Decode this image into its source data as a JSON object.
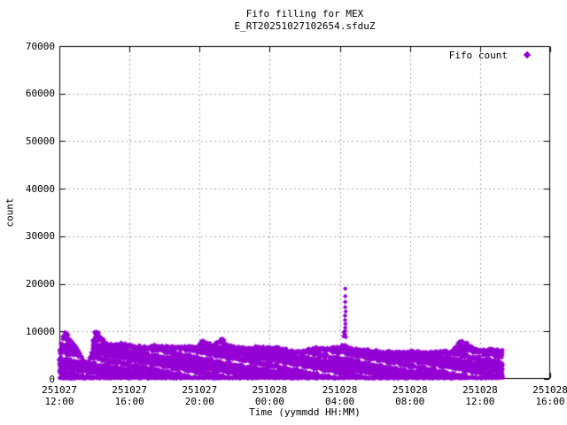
{
  "chart_data": {
    "type": "scatter",
    "title": "Fifo filling for MEX",
    "subtitle": "E_RT20251027102654.sfduZ",
    "xlabel": "Time (yymmdd HH:MM)",
    "ylabel": "count",
    "ylim": [
      0,
      70000
    ],
    "xlim_hours": [
      0,
      28
    ],
    "grid": true,
    "legend": {
      "label": "Fifo count",
      "position": "top-right",
      "marker": "filled-diamond"
    },
    "colors": {
      "marker": "#9400D3",
      "grid": "#a6a6a6",
      "text": "#000000",
      "border": "#000000",
      "background": "#ffffff"
    },
    "y_ticks": [
      0,
      10000,
      20000,
      30000,
      40000,
      50000,
      60000,
      70000
    ],
    "x_ticks": [
      {
        "date": "251027",
        "time": "12:00",
        "hours": 0
      },
      {
        "date": "251027",
        "time": "16:00",
        "hours": 4
      },
      {
        "date": "251027",
        "time": "20:00",
        "hours": 8
      },
      {
        "date": "251028",
        "time": "00:00",
        "hours": 12
      },
      {
        "date": "251028",
        "time": "04:00",
        "hours": 16
      },
      {
        "date": "251028",
        "time": "08:00",
        "hours": 20
      },
      {
        "date": "251028",
        "time": "12:00",
        "hours": 24
      },
      {
        "date": "251028",
        "time": "16:00",
        "hours": 28
      }
    ],
    "data_start_hours": 0,
    "data_end_hours": 25.3,
    "baseline_count_min": 80,
    "baseline_count_max": 300,
    "envelope_hours_count": [
      [
        0,
        6500
      ],
      [
        0.3,
        10200
      ],
      [
        0.5,
        9200
      ],
      [
        0.8,
        7600
      ],
      [
        1.1,
        6200
      ],
      [
        1.4,
        4200
      ],
      [
        1.6,
        3600
      ],
      [
        1.8,
        5200
      ],
      [
        2.0,
        9800
      ],
      [
        2.2,
        10000
      ],
      [
        2.4,
        8800
      ],
      [
        2.6,
        7800
      ],
      [
        2.9,
        7400
      ],
      [
        3.4,
        7600
      ],
      [
        4.0,
        7200
      ],
      [
        4.8,
        6900
      ],
      [
        5.6,
        7100
      ],
      [
        6.3,
        6800
      ],
      [
        7.1,
        7000
      ],
      [
        7.8,
        6900
      ],
      [
        8.1,
        8000
      ],
      [
        8.2,
        8400
      ],
      [
        8.4,
        7600
      ],
      [
        8.8,
        7200
      ],
      [
        9.1,
        8300
      ],
      [
        9.3,
        8700
      ],
      [
        9.5,
        7400
      ],
      [
        10.1,
        6800
      ],
      [
        10.9,
        6600
      ],
      [
        11.6,
        6900
      ],
      [
        12.4,
        6700
      ],
      [
        13.0,
        6200
      ],
      [
        13.4,
        5800
      ],
      [
        13.7,
        5900
      ],
      [
        14.2,
        6400
      ],
      [
        14.9,
        6700
      ],
      [
        15.4,
        6600
      ],
      [
        15.9,
        6800
      ],
      [
        16.3,
        7200
      ],
      [
        16.7,
        6500
      ],
      [
        17.2,
        6200
      ],
      [
        17.9,
        6100
      ],
      [
        18.7,
        5900
      ],
      [
        19.5,
        5800
      ],
      [
        20.2,
        5900
      ],
      [
        21.0,
        5700
      ],
      [
        21.7,
        5800
      ],
      [
        22.3,
        6000
      ],
      [
        22.6,
        6800
      ],
      [
        22.8,
        7900
      ],
      [
        23.0,
        8100
      ],
      [
        23.3,
        7400
      ],
      [
        23.6,
        6800
      ],
      [
        23.9,
        6400
      ],
      [
        24.5,
        6300
      ],
      [
        25.3,
        6200
      ]
    ],
    "spike": {
      "hours": 16.32,
      "values": [
        19000,
        17400,
        16200,
        15100,
        14200,
        13300,
        12400,
        11600,
        10800,
        10100,
        9400,
        8800
      ],
      "shoulder_hours": 16.22,
      "shoulder_values": [
        9800,
        9000
      ]
    }
  }
}
